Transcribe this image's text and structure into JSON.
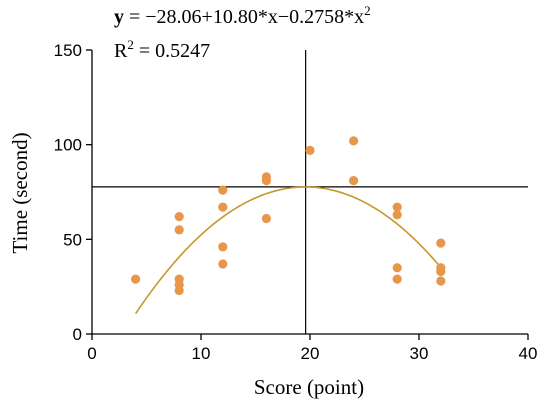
{
  "chart_data": {
    "type": "scatter",
    "title": "",
    "xlabel": "Score (point)",
    "ylabel": "Time (second)",
    "xlim": [
      0,
      40
    ],
    "ylim": [
      0,
      150
    ],
    "xticks": [
      0,
      10,
      20,
      30,
      40
    ],
    "yticks": [
      0,
      50,
      100,
      150
    ],
    "grid": false,
    "annotation": {
      "equation_prefix": "y",
      "equation_body": " = −28.06+10.80*x−0.2758*x",
      "equation_exp": "2",
      "r2_prefix": "R",
      "r2_exp": "2",
      "r2_body": " = 0.5247"
    },
    "fit": {
      "intercept": -28.06,
      "b1": 10.8,
      "b2": -0.2758,
      "x_range": [
        4,
        32
      ]
    },
    "reference_lines": {
      "x": 19.6,
      "y": 77.7
    },
    "points": [
      {
        "x": 4,
        "y": 29
      },
      {
        "x": 8,
        "y": 62
      },
      {
        "x": 8,
        "y": 55
      },
      {
        "x": 8,
        "y": 29
      },
      {
        "x": 8,
        "y": 26
      },
      {
        "x": 8,
        "y": 23
      },
      {
        "x": 12,
        "y": 76
      },
      {
        "x": 12,
        "y": 67
      },
      {
        "x": 12,
        "y": 46
      },
      {
        "x": 12,
        "y": 37
      },
      {
        "x": 16,
        "y": 83
      },
      {
        "x": 16,
        "y": 81
      },
      {
        "x": 16,
        "y": 61
      },
      {
        "x": 20,
        "y": 97
      },
      {
        "x": 24,
        "y": 102
      },
      {
        "x": 24,
        "y": 81
      },
      {
        "x": 28,
        "y": 67
      },
      {
        "x": 28,
        "y": 63
      },
      {
        "x": 28,
        "y": 35
      },
      {
        "x": 28,
        "y": 29
      },
      {
        "x": 32,
        "y": 48
      },
      {
        "x": 32,
        "y": 35
      },
      {
        "x": 32,
        "y": 33
      },
      {
        "x": 32,
        "y": 28
      }
    ],
    "colors": {
      "points": "#E8964A",
      "fit": "#C8962E",
      "axis": "#000000",
      "reference": "#000000"
    }
  }
}
